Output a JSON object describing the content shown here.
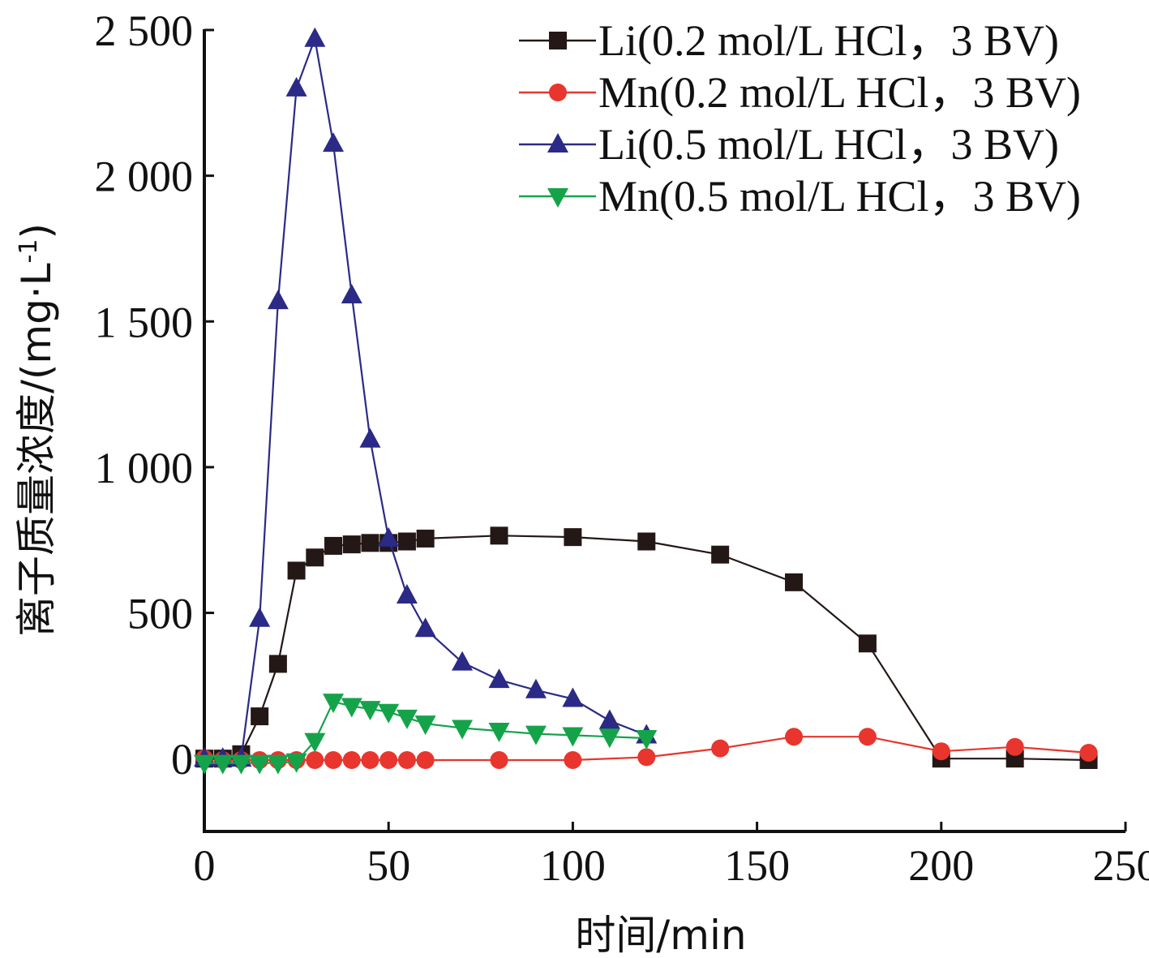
{
  "chart_data": {
    "type": "line",
    "title": "",
    "xlabel": "时间/min",
    "ylabel_main": "离子质量浓度/(mg·L",
    "ylabel_sup": "-1",
    "ylabel_close": ")",
    "xlim": [
      0,
      250
    ],
    "ylim": [
      -250,
      2500
    ],
    "xticks": [
      0,
      50,
      100,
      150,
      200,
      250
    ],
    "xtick_labels": [
      "0",
      "50",
      "100",
      "150",
      "200",
      "250"
    ],
    "yticks": [
      0,
      500,
      1000,
      1500,
      2000,
      2500
    ],
    "ytick_labels": [
      "0",
      "500",
      "1 000",
      "1 500",
      "2 000",
      "2 500"
    ],
    "grid": false,
    "legend_position": "top-right",
    "series": [
      {
        "name": "Li(0.2 mol/L HCl，3 BV)",
        "color": "#231815",
        "marker": "square",
        "x": [
          0,
          5,
          10,
          15,
          20,
          25,
          30,
          35,
          40,
          45,
          50,
          55,
          60,
          80,
          100,
          120,
          140,
          160,
          180,
          200,
          220,
          240
        ],
        "y": [
          0,
          0,
          15,
          145,
          325,
          645,
          690,
          730,
          735,
          740,
          740,
          745,
          755,
          765,
          760,
          745,
          700,
          605,
          395,
          0,
          0,
          -5
        ]
      },
      {
        "name": "Mn(0.2 mol/L HCl，3 BV)",
        "color": "#e8352d",
        "marker": "circle",
        "x": [
          0,
          5,
          10,
          15,
          20,
          25,
          30,
          35,
          40,
          45,
          50,
          55,
          60,
          80,
          100,
          120,
          140,
          160,
          180,
          200,
          220,
          240
        ],
        "y": [
          0,
          -5,
          -5,
          -5,
          -5,
          -5,
          -5,
          -5,
          -5,
          -5,
          -5,
          -5,
          -5,
          -5,
          -5,
          5,
          35,
          75,
          75,
          25,
          40,
          20
        ]
      },
      {
        "name": "Li(0.5 mol/L HCl，3 BV)",
        "color": "#2b2a86",
        "marker": "triangle-up",
        "x": [
          0,
          5,
          10,
          15,
          20,
          25,
          30,
          35,
          40,
          45,
          50,
          55,
          60,
          70,
          80,
          90,
          100,
          110,
          120
        ],
        "y": [
          0,
          0,
          0,
          480,
          1570,
          2300,
          2470,
          2110,
          1590,
          1095,
          755,
          560,
          445,
          330,
          270,
          235,
          205,
          130,
          80
        ]
      },
      {
        "name": "Mn(0.5 mol/L HCl，3 BV)",
        "color": "#15a34a",
        "marker": "triangle-down",
        "x": [
          0,
          5,
          10,
          15,
          20,
          25,
          30,
          35,
          40,
          45,
          50,
          55,
          60,
          70,
          80,
          90,
          100,
          110,
          120
        ],
        "y": [
          -15,
          -15,
          -15,
          -15,
          -15,
          -10,
          60,
          195,
          180,
          170,
          160,
          140,
          120,
          105,
          95,
          85,
          80,
          75,
          70
        ]
      }
    ]
  }
}
